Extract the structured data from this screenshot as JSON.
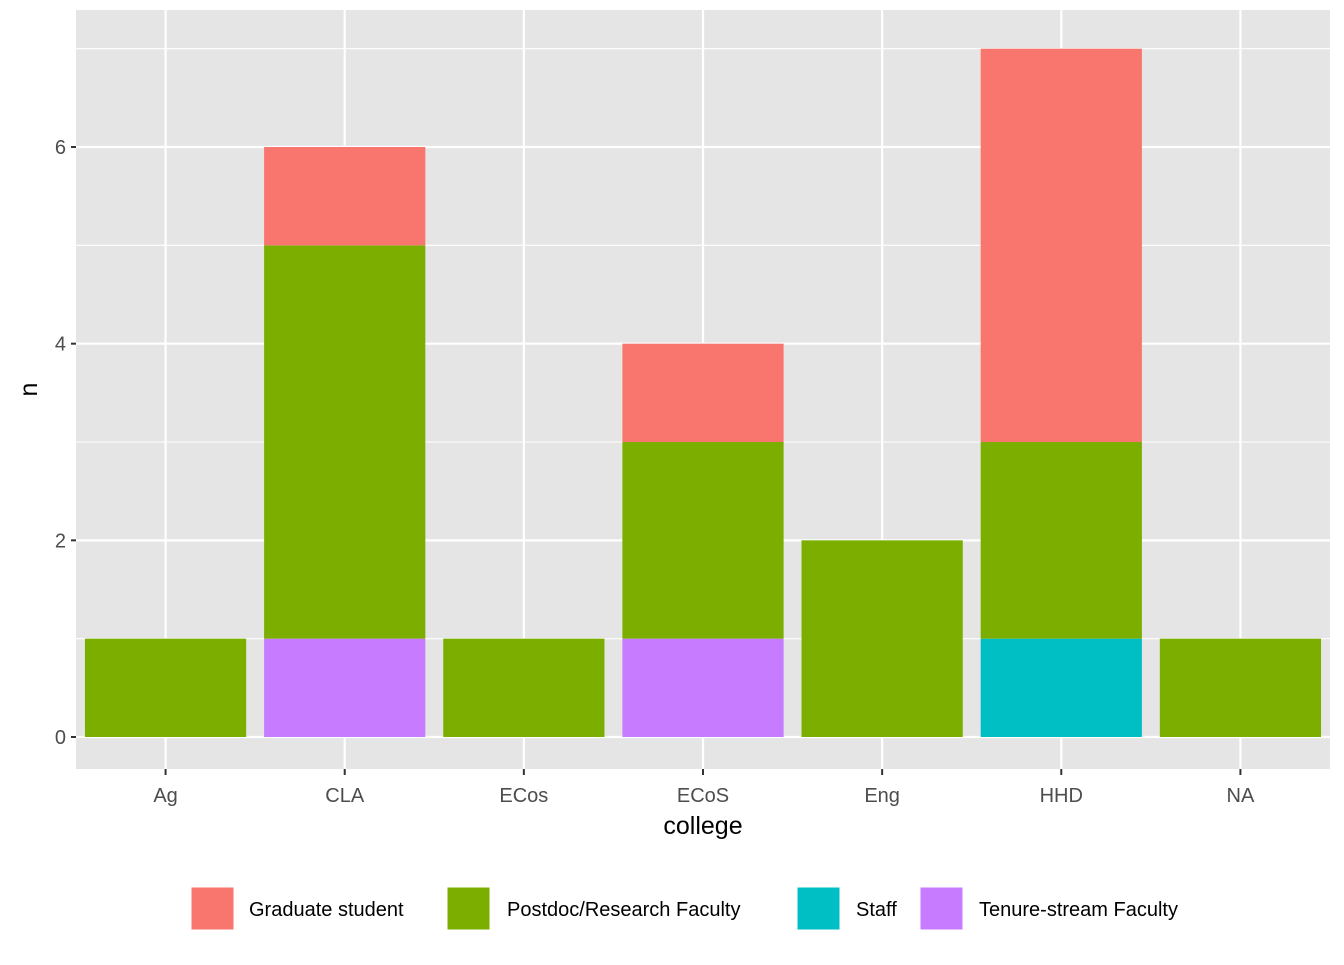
{
  "chart_data": {
    "type": "bar",
    "stacked": true,
    "title": "",
    "xlabel": "college",
    "ylabel": "n",
    "ylim": [
      0,
      7.35
    ],
    "yticks": [
      0,
      2,
      4,
      6
    ],
    "grid": true,
    "legend_position": "bottom",
    "categories": [
      "Ag",
      "CLA",
      "ECos",
      "ECoS",
      "Eng",
      "HHD",
      "NA"
    ],
    "series": [
      {
        "name": "Graduate student",
        "color": "#F8766D",
        "values": [
          0,
          1,
          0,
          1,
          0,
          4,
          0
        ]
      },
      {
        "name": "Postdoc/Research Faculty",
        "color": "#7CAE00",
        "values": [
          1,
          4,
          1,
          2,
          2,
          2,
          1
        ]
      },
      {
        "name": "Staff",
        "color": "#00BFC4",
        "values": [
          0,
          0,
          0,
          0,
          0,
          1,
          0
        ]
      },
      {
        "name": "Tenure-stream Faculty",
        "color": "#C77CFF",
        "values": [
          0,
          1,
          0,
          1,
          0,
          0,
          0
        ]
      }
    ],
    "stack_order_bottom_to_top": [
      "Staff",
      "Tenure-stream Faculty",
      "Postdoc/Research Faculty",
      "Graduate student"
    ],
    "panel_background": "#E5E5E5",
    "grid_color": "#FFFFFF"
  }
}
